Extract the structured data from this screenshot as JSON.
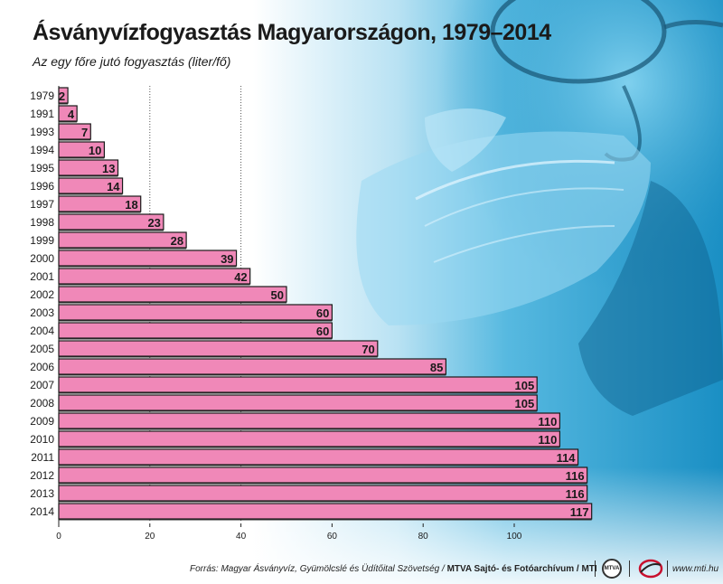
{
  "header": {
    "title": "Ásványvízfogyasztás Magyarországon, 1979–2014",
    "subtitle": "Az egy főre jutó fogyasztás (liter/fő)"
  },
  "chart_data": {
    "type": "bar",
    "orientation": "horizontal",
    "categories": [
      "1979",
      "1991",
      "1993",
      "1994",
      "1995",
      "1996",
      "1997",
      "1998",
      "1999",
      "2000",
      "2001",
      "2002",
      "2003",
      "2004",
      "2005",
      "2006",
      "2007",
      "2008",
      "2009",
      "2010",
      "2011",
      "2012",
      "2013",
      "2014"
    ],
    "values": [
      2,
      4,
      7,
      10,
      13,
      14,
      18,
      23,
      28,
      39,
      42,
      50,
      60,
      60,
      70,
      85,
      105,
      105,
      110,
      110,
      114,
      116,
      116,
      117
    ],
    "xlim": [
      0,
      117
    ],
    "xticks": [
      0,
      20,
      40,
      60,
      80,
      100
    ],
    "gridlines_at": [
      20,
      40
    ],
    "bar_color": "#f088b8",
    "value_labels": true
  },
  "footer": {
    "source": "Forrás: Magyar Ásványvíz, Gyümölcslé és Üdítőital Szövetség /",
    "credit": "MTVA Sajtó- és Fotóarchívum / MTI",
    "logo_mtva": "MTVA",
    "url": "www.mti.hu"
  },
  "colors": {
    "bar_fill": "#f088b8",
    "background_photo": "#1e9ccf",
    "text": "#1a1a1a"
  }
}
